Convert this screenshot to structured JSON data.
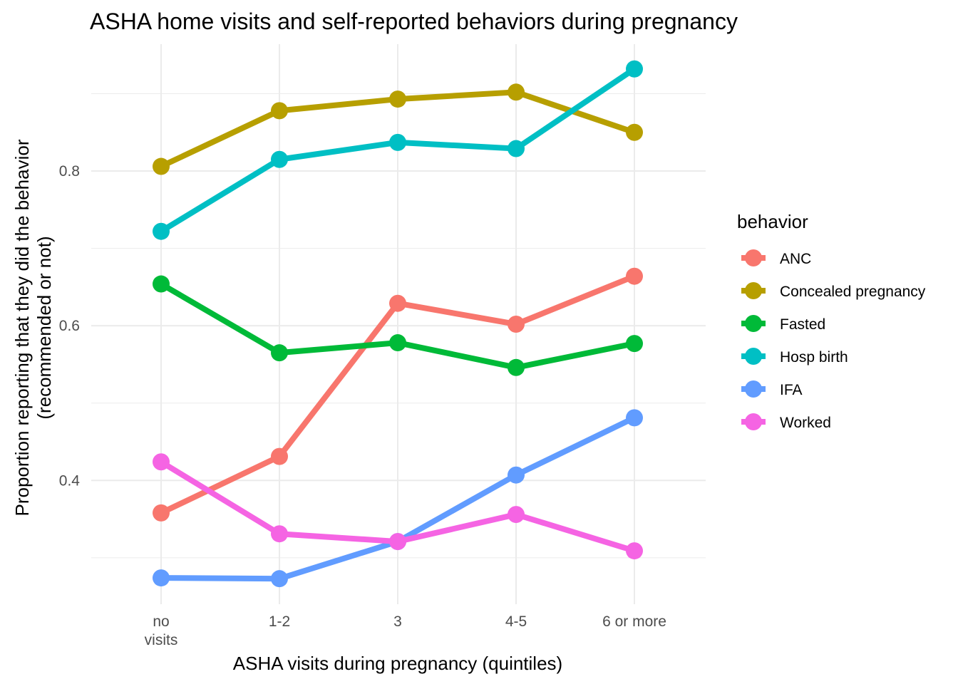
{
  "chart_data": {
    "type": "line",
    "title": "ASHA home visits and self-reported behaviors during pregnancy",
    "xlabel": "ASHA visits during pregnancy (quintiles)",
    "ylabel": [
      "Proportion reporting that they did the behavior",
      "(recommended or not)"
    ],
    "categories": [
      [
        "no",
        "visits"
      ],
      [
        "1-2"
      ],
      [
        "3"
      ],
      [
        "4-5"
      ],
      [
        "6 or more"
      ]
    ],
    "ylim": [
      0.24,
      0.964
    ],
    "yticks": [
      0.4,
      0.6,
      0.8
    ],
    "ytick_labels": [
      "0.4",
      "0.6",
      "0.8"
    ],
    "yminor": [
      0.3,
      0.5,
      0.7,
      0.9
    ],
    "grid": true,
    "legend": {
      "title": "behavior",
      "position": "right"
    },
    "series": [
      {
        "name": "ANC",
        "color": "#F8766D",
        "values": [
          0.358,
          0.431,
          0.629,
          0.602,
          0.664
        ]
      },
      {
        "name": "Concealed pregnancy",
        "color": "#B79F00",
        "values": [
          0.806,
          0.878,
          0.893,
          0.902,
          0.85
        ]
      },
      {
        "name": "Fasted",
        "color": "#00BA38",
        "values": [
          0.654,
          0.565,
          0.578,
          0.546,
          0.577
        ]
      },
      {
        "name": "Hosp birth",
        "color": "#00BFC4",
        "values": [
          0.722,
          0.815,
          0.837,
          0.829,
          0.932
        ]
      },
      {
        "name": "IFA",
        "color": "#619CFF",
        "values": [
          0.274,
          0.273,
          0.321,
          0.407,
          0.481
        ]
      },
      {
        "name": "Worked",
        "color": "#F564E3",
        "values": [
          0.424,
          0.331,
          0.321,
          0.356,
          0.309
        ]
      }
    ]
  }
}
